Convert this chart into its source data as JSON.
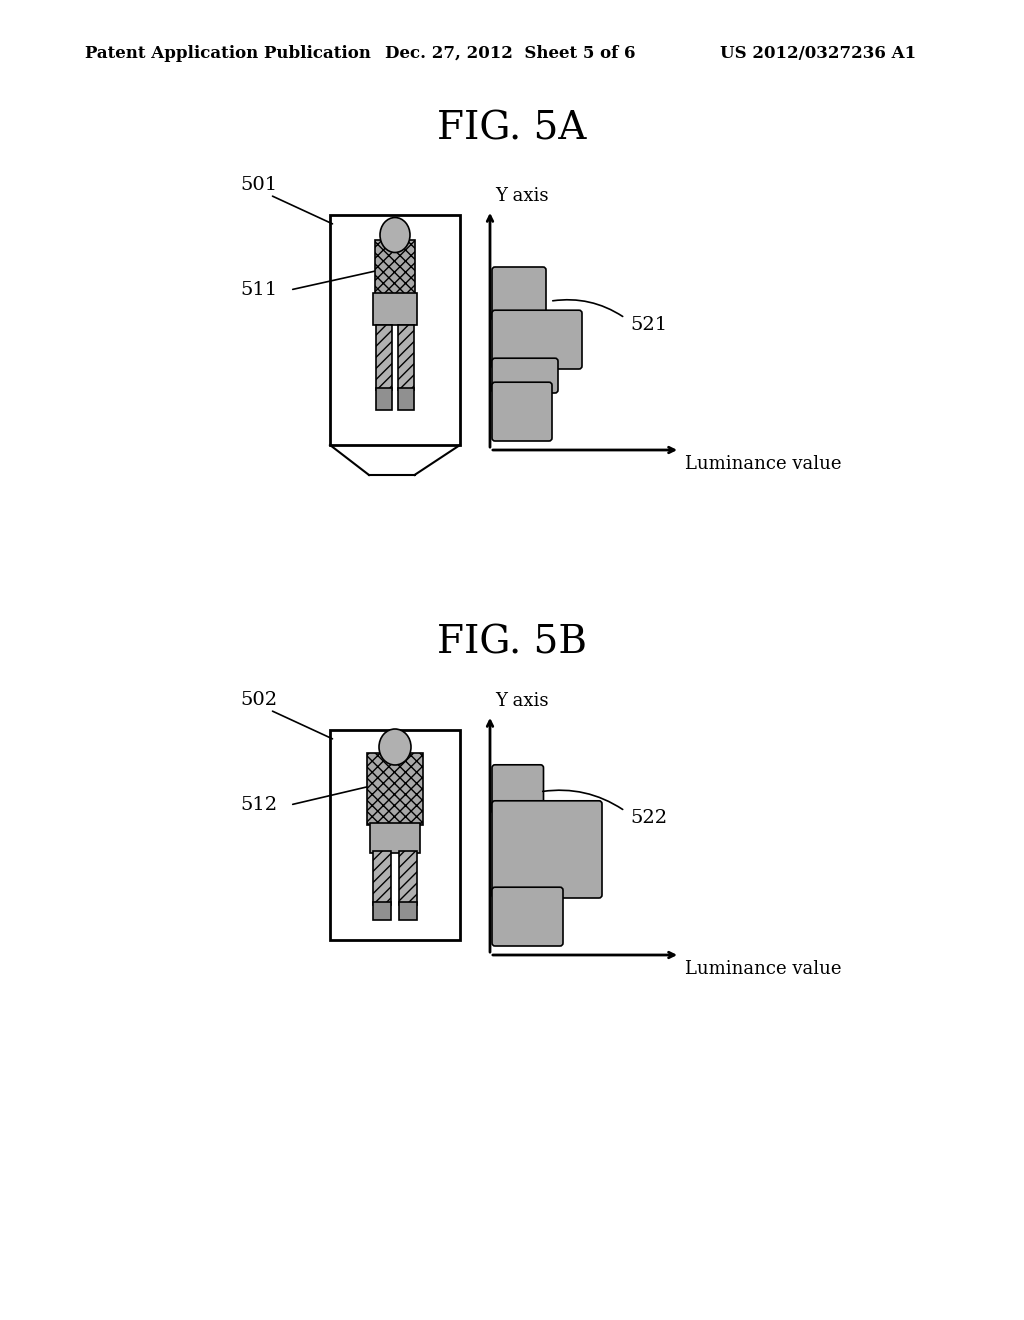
{
  "bg_color": "#ffffff",
  "header_text": "Patent Application Publication",
  "header_date": "Dec. 27, 2012  Sheet 5 of 6",
  "header_patent": "US 2012/0327236 A1",
  "fig5a_title": "FIG. 5A",
  "fig5b_title": "FIG. 5B",
  "label_501": "501",
  "label_511": "511",
  "label_521": "521",
  "label_502": "502",
  "label_512": "512",
  "label_522": "522",
  "y_axis_label": "Y axis",
  "x_axis_label": "Luminance value",
  "person_color": "#aaaaaa",
  "box_color": "#000000",
  "profile_color": "#aaaaaa",
  "dark_gray": "#888888",
  "light_gray": "#cccccc"
}
